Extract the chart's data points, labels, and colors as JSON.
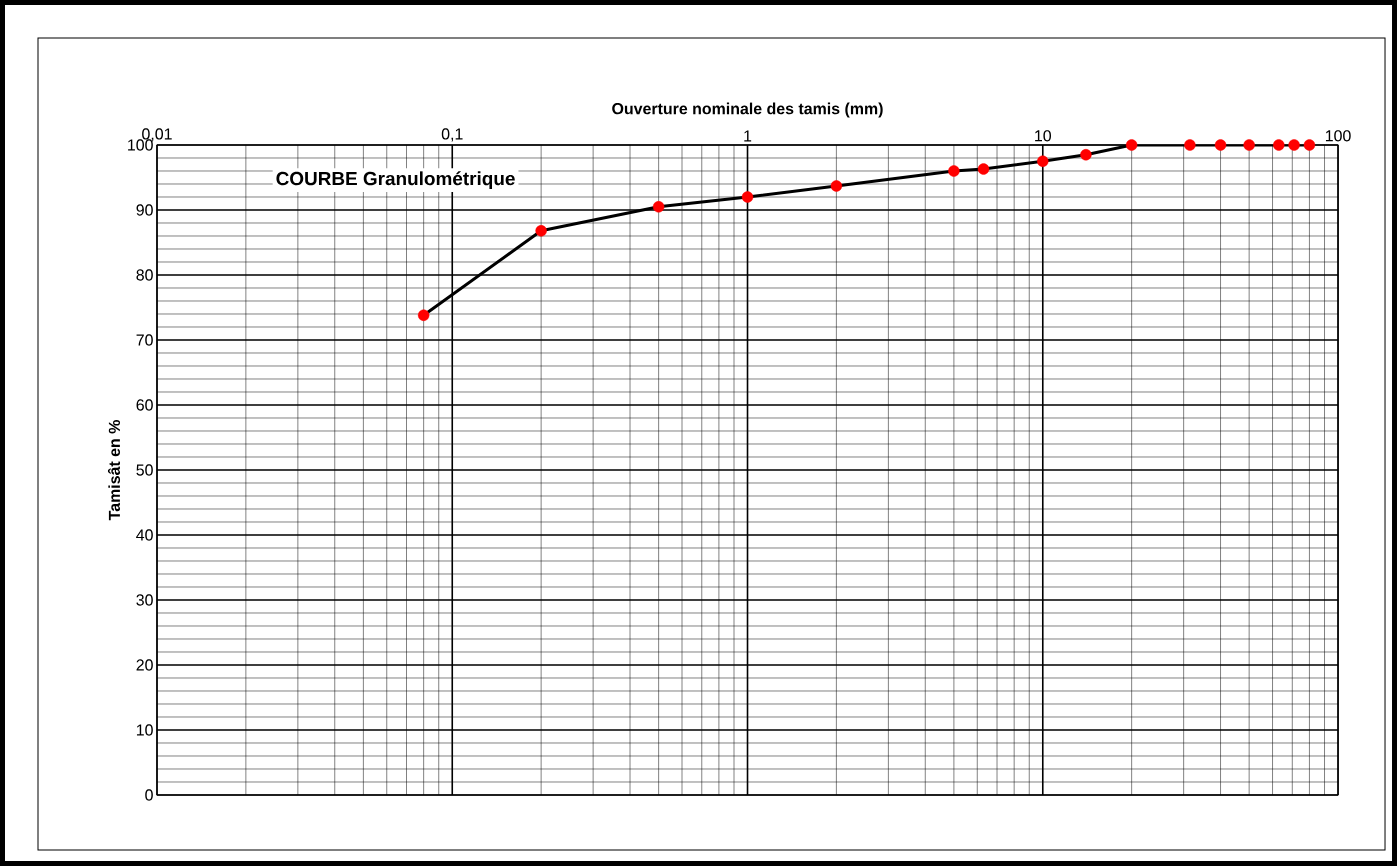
{
  "chart_data": {
    "type": "line",
    "title": "COURBE Granulométrique",
    "xlabel": "Ouverture nominale des tamis (mm)",
    "ylabel": "Tamisât en %",
    "log": "x",
    "grid": true,
    "marker": "circle",
    "line_style": "solid",
    "xlim": [
      0.01,
      100
    ],
    "xticks": [
      {
        "value": 0.01,
        "label": "0,01"
      },
      {
        "value": 0.1,
        "label": "0,1"
      },
      1,
      10,
      100
    ],
    "ylim": [
      0,
      100
    ],
    "yticks": [
      0,
      10,
      20,
      30,
      40,
      50,
      60,
      70,
      80,
      90,
      100
    ],
    "x": [
      0.08,
      0.2,
      0.5,
      1,
      2,
      5,
      6.3,
      10,
      14,
      20,
      31.5,
      40,
      50,
      63,
      71,
      80
    ],
    "series": [
      {
        "color": "#000000",
        "colors": [
          "#ff0000",
          "#ff0000",
          "#ff0000",
          "#ff0000",
          "#ff0000",
          "#ff0000",
          "#ff0000",
          "#ff0000",
          "#ff0000",
          "#ff0000",
          "#ff0000",
          "#ff0000",
          "#ff0000",
          "#ff0000",
          "#ff0000",
          "#ff0000"
        ],
        "values": [
          73.8,
          86.8,
          90.5,
          92.0,
          93.7,
          96.0,
          96.3,
          97.5,
          98.5,
          100,
          100,
          100,
          100,
          100,
          100,
          100
        ]
      }
    ]
  }
}
